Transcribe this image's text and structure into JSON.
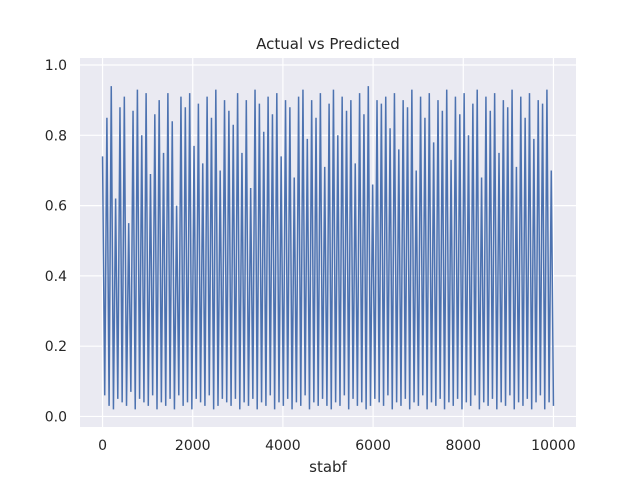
{
  "chart_data": {
    "type": "line",
    "title": "Actual vs Predicted",
    "xlabel": "stabf",
    "ylabel": "",
    "xlim": [
      -500,
      10500
    ],
    "ylim": [
      -0.03,
      1.02
    ],
    "x_ticks": [
      0,
      2000,
      4000,
      6000,
      8000,
      10000
    ],
    "y_ticks": [
      0.0,
      0.2,
      0.4,
      0.6,
      0.8,
      1.0
    ],
    "x_tick_labels": [
      "0",
      "2000",
      "4000",
      "6000",
      "8000",
      "10000"
    ],
    "y_tick_labels": [
      "0.0",
      "0.2",
      "0.4",
      "0.6",
      "0.8",
      "1.0"
    ],
    "grid": true,
    "series": [
      {
        "color": "#4c72b0",
        "x_range": [
          0,
          10000
        ],
        "values": [
          0.74,
          0.06,
          0.85,
          0.03,
          0.94,
          0.02,
          0.62,
          0.05,
          0.88,
          0.04,
          0.91,
          0.03,
          0.55,
          0.07,
          0.87,
          0.02,
          0.93,
          0.05,
          0.8,
          0.04,
          0.92,
          0.03,
          0.69,
          0.06,
          0.86,
          0.02,
          0.9,
          0.04,
          0.75,
          0.03,
          0.92,
          0.05,
          0.84,
          0.02,
          0.6,
          0.06,
          0.91,
          0.03,
          0.88,
          0.04,
          0.92,
          0.02,
          0.77,
          0.05,
          0.89,
          0.04,
          0.72,
          0.03,
          0.91,
          0.06,
          0.85,
          0.02,
          0.93,
          0.03,
          0.7,
          0.05,
          0.9,
          0.04,
          0.87,
          0.03,
          0.83,
          0.05,
          0.92,
          0.02,
          0.75,
          0.04,
          0.9,
          0.03,
          0.65,
          0.05,
          0.93,
          0.02,
          0.89,
          0.04,
          0.81,
          0.03,
          0.91,
          0.06,
          0.86,
          0.02,
          0.92,
          0.04,
          0.74,
          0.03,
          0.9,
          0.05,
          0.88,
          0.02,
          0.68,
          0.04,
          0.91,
          0.03,
          0.93,
          0.06,
          0.79,
          0.02,
          0.9,
          0.04,
          0.85,
          0.03,
          0.92,
          0.05,
          0.71,
          0.03,
          0.89,
          0.02,
          0.93,
          0.04,
          0.8,
          0.03,
          0.91,
          0.06,
          0.87,
          0.02,
          0.9,
          0.05,
          0.72,
          0.03,
          0.92,
          0.04,
          0.86,
          0.02,
          0.94,
          0.03,
          0.66,
          0.05,
          0.9,
          0.04,
          0.89,
          0.03,
          0.91,
          0.06,
          0.82,
          0.02,
          0.92,
          0.04,
          0.76,
          0.03,
          0.9,
          0.05,
          0.88,
          0.02,
          0.93,
          0.04,
          0.7,
          0.03,
          0.91,
          0.06,
          0.85,
          0.02,
          0.92,
          0.04,
          0.78,
          0.03,
          0.9,
          0.05,
          0.87,
          0.02,
          0.93,
          0.04,
          0.73,
          0.03,
          0.91,
          0.05,
          0.86,
          0.02,
          0.92,
          0.04,
          0.8,
          0.03,
          0.89,
          0.06,
          0.93,
          0.02,
          0.68,
          0.04,
          0.91,
          0.03,
          0.87,
          0.05,
          0.92,
          0.02,
          0.75,
          0.04,
          0.9,
          0.03,
          0.88,
          0.06,
          0.93,
          0.02,
          0.71,
          0.04,
          0.91,
          0.03,
          0.85,
          0.05,
          0.92,
          0.02,
          0.79,
          0.04,
          0.9,
          0.06,
          0.89,
          0.02,
          0.93,
          0.04,
          0.7,
          0.03
        ]
      }
    ]
  }
}
